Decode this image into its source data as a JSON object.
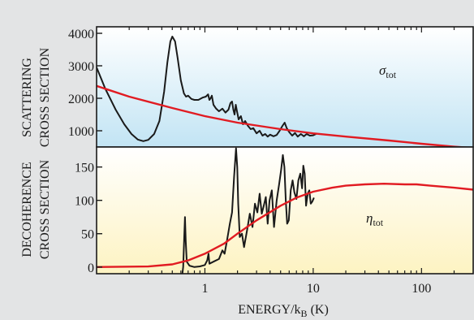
{
  "background_color": "#e3e4e5",
  "chart_data": [
    {
      "type": "line",
      "panel": "top",
      "ylabel": [
        "SCATTERING",
        "CROSS SECTION"
      ],
      "xlabel": "ENERGY/k_B (K)",
      "xscale": "log",
      "xlim": [
        0.1,
        300
      ],
      "ylim": [
        500,
        4200
      ],
      "yticks": [
        1000,
        2000,
        3000,
        4000
      ],
      "xticks": [
        1,
        10,
        100
      ],
      "xtick_labels": [
        "1",
        "10",
        "100"
      ],
      "gradient": {
        "top": "#ffffff",
        "bottom": "#c2e4f4"
      },
      "series": [
        {
          "id": "measured",
          "color": "#1a1a1a",
          "points": [
            [
              0.1,
              2950
            ],
            [
              0.12,
              2300
            ],
            [
              0.15,
              1650
            ],
            [
              0.18,
              1200
            ],
            [
              0.21,
              900
            ],
            [
              0.24,
              730
            ],
            [
              0.27,
              680
            ],
            [
              0.3,
              720
            ],
            [
              0.34,
              900
            ],
            [
              0.38,
              1300
            ],
            [
              0.42,
              2200
            ],
            [
              0.45,
              3100
            ],
            [
              0.48,
              3750
            ],
            [
              0.5,
              3900
            ],
            [
              0.53,
              3750
            ],
            [
              0.56,
              3250
            ],
            [
              0.6,
              2550
            ],
            [
              0.64,
              2150
            ],
            [
              0.67,
              2050
            ],
            [
              0.7,
              2080
            ],
            [
              0.75,
              1980
            ],
            [
              0.8,
              1950
            ],
            [
              0.87,
              1950
            ],
            [
              0.95,
              2020
            ],
            [
              1.02,
              2050
            ],
            [
              1.07,
              2120
            ],
            [
              1.1,
              1950
            ],
            [
              1.13,
              2000
            ],
            [
              1.16,
              2080
            ],
            [
              1.2,
              1800
            ],
            [
              1.27,
              1680
            ],
            [
              1.35,
              1600
            ],
            [
              1.45,
              1680
            ],
            [
              1.55,
              1560
            ],
            [
              1.65,
              1650
            ],
            [
              1.72,
              1850
            ],
            [
              1.78,
              1900
            ],
            [
              1.83,
              1650
            ],
            [
              1.88,
              1500
            ],
            [
              1.93,
              1800
            ],
            [
              1.98,
              1600
            ],
            [
              2.05,
              1350
            ],
            [
              2.15,
              1450
            ],
            [
              2.25,
              1200
            ],
            [
              2.35,
              1300
            ],
            [
              2.5,
              1150
            ],
            [
              2.65,
              1050
            ],
            [
              2.8,
              1080
            ],
            [
              3.0,
              920
            ],
            [
              3.2,
              1000
            ],
            [
              3.4,
              850
            ],
            [
              3.6,
              900
            ],
            [
              3.8,
              820
            ],
            [
              4.0,
              880
            ],
            [
              4.3,
              830
            ],
            [
              4.6,
              870
            ],
            [
              4.9,
              1000
            ],
            [
              5.2,
              1150
            ],
            [
              5.45,
              1250
            ],
            [
              5.7,
              1080
            ],
            [
              6.0,
              960
            ],
            [
              6.4,
              850
            ],
            [
              6.8,
              930
            ],
            [
              7.2,
              820
            ],
            [
              7.7,
              900
            ],
            [
              8.2,
              830
            ],
            [
              8.7,
              900
            ],
            [
              9.3,
              850
            ],
            [
              10.0,
              860
            ],
            [
              10.6,
              900
            ]
          ]
        },
        {
          "id": "sigma_tot",
          "name": "σ",
          "name_sub": "tot",
          "color": "#e11b22",
          "points": [
            [
              0.1,
              2380
            ],
            [
              0.2,
              2050
            ],
            [
              0.5,
              1700
            ],
            [
              1,
              1450
            ],
            [
              2,
              1250
            ],
            [
              5,
              1050
            ],
            [
              10,
              920
            ],
            [
              20,
              820
            ],
            [
              50,
              700
            ],
            [
              100,
              600
            ],
            [
              200,
              510
            ],
            [
              300,
              470
            ]
          ]
        }
      ]
    },
    {
      "type": "line",
      "panel": "bottom",
      "ylabel": [
        "DECOHERENCE",
        "CROSS SECTION"
      ],
      "xscale": "log",
      "xlim": [
        0.1,
        300
      ],
      "ylim": [
        -10,
        180
      ],
      "yticks": [
        0,
        50,
        100,
        150
      ],
      "gradient": {
        "top": "#ffffff",
        "bottom": "#fdf3c2"
      },
      "series": [
        {
          "id": "measured",
          "color": "#1a1a1a",
          "points": [
            [
              0.62,
              -10
            ],
            [
              0.63,
              0
            ],
            [
              0.645,
              45
            ],
            [
              0.655,
              75
            ],
            [
              0.665,
              40
            ],
            [
              0.68,
              8
            ],
            [
              0.72,
              2
            ],
            [
              0.8,
              0
            ],
            [
              0.9,
              1
            ],
            [
              1.0,
              3
            ],
            [
              1.05,
              10
            ],
            [
              1.08,
              20
            ],
            [
              1.1,
              5
            ],
            [
              1.2,
              8
            ],
            [
              1.35,
              12
            ],
            [
              1.45,
              25
            ],
            [
              1.52,
              20
            ],
            [
              1.6,
              40
            ],
            [
              1.7,
              65
            ],
            [
              1.78,
              82
            ],
            [
              1.86,
              135
            ],
            [
              1.94,
              178
            ],
            [
              1.99,
              150
            ],
            [
              2.03,
              95
            ],
            [
              2.1,
              45
            ],
            [
              2.2,
              50
            ],
            [
              2.3,
              30
            ],
            [
              2.45,
              55
            ],
            [
              2.6,
              80
            ],
            [
              2.75,
              60
            ],
            [
              2.9,
              95
            ],
            [
              3.05,
              82
            ],
            [
              3.2,
              110
            ],
            [
              3.35,
              80
            ],
            [
              3.5,
              92
            ],
            [
              3.65,
              105
            ],
            [
              3.8,
              65
            ],
            [
              3.95,
              100
            ],
            [
              4.15,
              115
            ],
            [
              4.35,
              60
            ],
            [
              4.6,
              100
            ],
            [
              4.85,
              125
            ],
            [
              5.05,
              145
            ],
            [
              5.25,
              168
            ],
            [
              5.42,
              150
            ],
            [
              5.58,
              100
            ],
            [
              5.75,
              65
            ],
            [
              5.95,
              70
            ],
            [
              6.2,
              115
            ],
            [
              6.45,
              130
            ],
            [
              6.7,
              112
            ],
            [
              7.0,
              102
            ],
            [
              7.3,
              130
            ],
            [
              7.6,
              140
            ],
            [
              7.9,
              118
            ],
            [
              8.1,
              152
            ],
            [
              8.35,
              140
            ],
            [
              8.6,
              92
            ],
            [
              8.9,
              110
            ],
            [
              9.2,
              115
            ],
            [
              9.5,
              95
            ],
            [
              9.8,
              98
            ],
            [
              10.1,
              103
            ]
          ]
        },
        {
          "id": "eta_tot",
          "name": "η",
          "name_sub": "tot",
          "color": "#e11b22",
          "points": [
            [
              0.1,
              0
            ],
            [
              0.3,
              0.8
            ],
            [
              0.5,
              4
            ],
            [
              0.7,
              10
            ],
            [
              1.0,
              20
            ],
            [
              1.5,
              35
            ],
            [
              2.0,
              50
            ],
            [
              3.0,
              70
            ],
            [
              5.0,
              92
            ],
            [
              7.0,
              104
            ],
            [
              10,
              113
            ],
            [
              15,
              119
            ],
            [
              20,
              122
            ],
            [
              30,
              124
            ],
            [
              45,
              125
            ],
            [
              70,
              124
            ],
            [
              90,
              124
            ],
            [
              120,
              122
            ],
            [
              200,
              119
            ],
            [
              300,
              116
            ]
          ]
        }
      ]
    }
  ]
}
